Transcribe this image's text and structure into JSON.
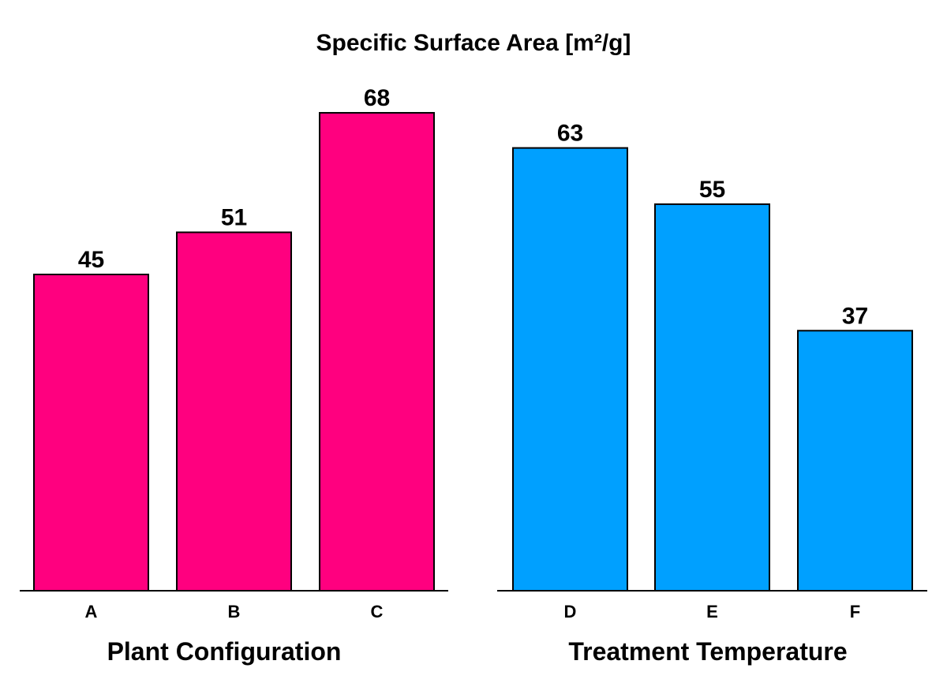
{
  "chart_data": {
    "type": "bar",
    "title": "Specific Surface Area [m²/g]",
    "ylim": [
      0,
      84
    ],
    "panels": [
      {
        "xlabel": "Plant Configuration",
        "categories": [
          "A",
          "B",
          "C"
        ],
        "values": [
          45,
          51,
          68
        ],
        "color": "#FF007F"
      },
      {
        "xlabel": "Treatment Temperature",
        "categories": [
          "D",
          "E",
          "F"
        ],
        "values": [
          63,
          55,
          37
        ],
        "color": "#00A0FF"
      }
    ]
  }
}
